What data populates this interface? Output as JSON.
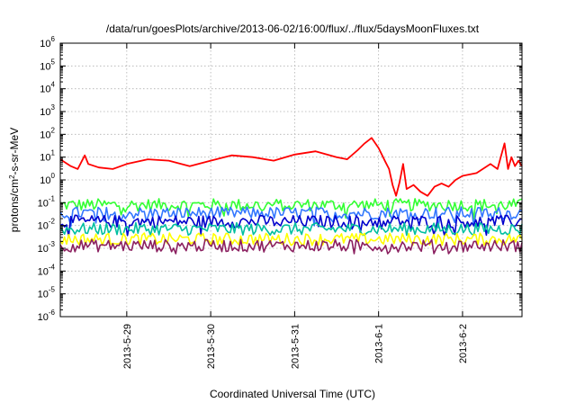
{
  "chart_data": {
    "type": "line",
    "title": "/data/run/goesPlots/archive/2013-06-02/16:00/flux/../flux/5daysMoonFluxes.txt",
    "xlabel": "Coordinated Universal Time (UTC)",
    "ylabel": "protons/cm2-s-sr-MeV",
    "ylabel_parts": {
      "pre": "protons/cm",
      "sup": "2",
      "post": "-s-sr-MeV"
    },
    "y_scale": "log",
    "ylim_exp": [
      -6,
      6
    ],
    "y_tick_exponents": [
      -6,
      -5,
      -4,
      -3,
      -2,
      -1,
      0,
      1,
      2,
      3,
      4,
      5,
      6
    ],
    "y_tick_base": "10",
    "xlim_days": [
      "2013-05-28 05:00",
      "2013-06-02 17:00"
    ],
    "x_ticks": [
      "2013-5-29",
      "2013-5-30",
      "2013-5-31",
      "2013-6-1",
      "2013-6-2"
    ],
    "grid": true,
    "series": [
      {
        "color": "#ff0000",
        "points": [
          [
            "2013-05-28 05:00",
            8
          ],
          [
            "2013-05-28 08:00",
            4
          ],
          [
            "2013-05-28 10:00",
            3
          ],
          [
            "2013-05-28 12:00",
            12
          ],
          [
            "2013-05-28 13:00",
            5
          ],
          [
            "2013-05-28 16:00",
            3.5
          ],
          [
            "2013-05-28 20:00",
            3
          ],
          [
            "2013-05-29 00:00",
            5
          ],
          [
            "2013-05-29 06:00",
            8
          ],
          [
            "2013-05-29 12:00",
            7
          ],
          [
            "2013-05-29 18:00",
            4
          ],
          [
            "2013-05-30 00:00",
            7
          ],
          [
            "2013-05-30 06:00",
            12
          ],
          [
            "2013-05-30 12:00",
            10
          ],
          [
            "2013-05-30 18:00",
            7
          ],
          [
            "2013-05-31 00:00",
            13
          ],
          [
            "2013-05-31 06:00",
            18
          ],
          [
            "2013-05-31 12:00",
            10
          ],
          [
            "2013-05-31 15:00",
            8
          ],
          [
            "2013-05-31 18:00",
            20
          ],
          [
            "2013-05-31 20:00",
            40
          ],
          [
            "2013-05-31 22:00",
            70
          ],
          [
            "2013-06-01 00:00",
            25
          ],
          [
            "2013-06-01 02:00",
            6
          ],
          [
            "2013-06-01 03:00",
            3
          ],
          [
            "2013-06-01 04:00",
            0.6
          ],
          [
            "2013-06-01 05:00",
            0.2
          ],
          [
            "2013-06-01 06:00",
            0.8
          ],
          [
            "2013-06-01 07:00",
            5
          ],
          [
            "2013-06-01 08:00",
            0.4
          ],
          [
            "2013-06-01 10:00",
            0.6
          ],
          [
            "2013-06-01 12:00",
            0.3
          ],
          [
            "2013-06-01 14:00",
            0.2
          ],
          [
            "2013-06-01 16:00",
            0.5
          ],
          [
            "2013-06-01 18:00",
            0.7
          ],
          [
            "2013-06-01 20:00",
            0.5
          ],
          [
            "2013-06-01 22:00",
            1
          ],
          [
            "2013-06-02 00:00",
            1.5
          ],
          [
            "2013-06-02 04:00",
            2
          ],
          [
            "2013-06-02 08:00",
            5
          ],
          [
            "2013-06-02 10:00",
            3
          ],
          [
            "2013-06-02 12:00",
            40
          ],
          [
            "2013-06-02 13:00",
            3
          ],
          [
            "2013-06-02 14:00",
            10
          ],
          [
            "2013-06-02 15:00",
            4
          ],
          [
            "2013-06-02 16:00",
            7
          ],
          [
            "2013-06-02 17:00",
            4
          ]
        ]
      },
      {
        "color": "#33ff33",
        "level": 0.08
      },
      {
        "color": "#3377ff",
        "level": 0.035
      },
      {
        "color": "#0000cc",
        "level": 0.015
      },
      {
        "color": "#00bfa0",
        "level": 0.007
      },
      {
        "color": "#ffff00",
        "level": 0.0025
      },
      {
        "color": "#8b2060",
        "level": 0.0013
      }
    ]
  }
}
